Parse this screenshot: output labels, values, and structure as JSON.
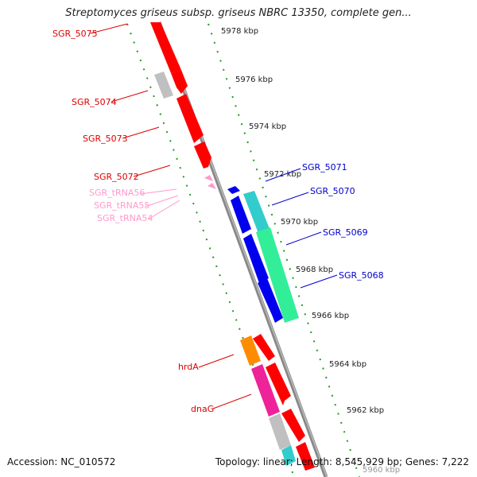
{
  "title": "Streptomyces griseus subsp. griseus NBRC 13350, complete gen...",
  "footer": {
    "accession": "Accession: NC_010572",
    "summary": "Topology: linear; Length: 8,545,929 bp; Genes: 7,222"
  },
  "scale_ticks": [
    "5978 kbp",
    "5976 kbp",
    "5974 kbp",
    "5972 kbp",
    "5970 kbp",
    "5968 kbp",
    "5966 kbp",
    "5964 kbp",
    "5962 kbp",
    "5960 kbp"
  ],
  "gene_labels": [
    "SGR_5075",
    "SGR_5074",
    "SGR_5073",
    "SGR_5072",
    "SGR_tRNA56",
    "SGR_tRNA55",
    "SGR_tRNA54",
    "SGR_5071",
    "SGR_5070",
    "SGR_5069",
    "SGR_5068",
    "hrdA",
    "dnaG"
  ],
  "colors": {
    "forward_gene": "#ff0000",
    "reverse_gene": "#0000ee",
    "trna": "#ff99cc",
    "grey_gene": "#c0c0c0",
    "cyan_gene": "#33cccc",
    "green_gene": "#33ee99",
    "orange_gene": "#ff8c00",
    "magenta_gene": "#ee2299",
    "axis": "#888888",
    "tick_dots": "#229922"
  }
}
